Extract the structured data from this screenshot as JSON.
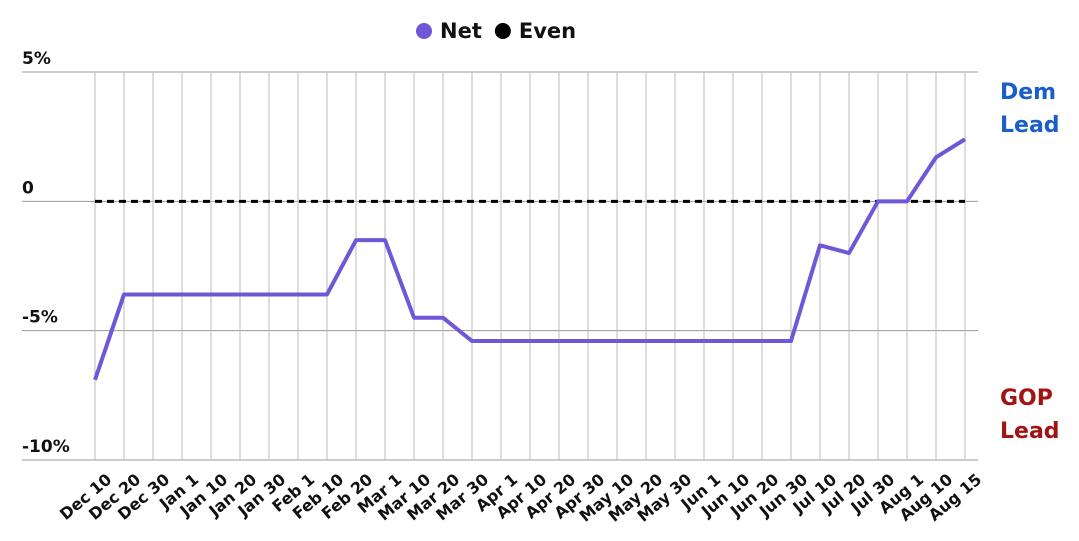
{
  "chart_data": {
    "type": "line",
    "categories": [
      "Dec 10",
      "Dec 20",
      "Dec 30",
      "Jan 1",
      "Jan 10",
      "Jan 20",
      "Jan 30",
      "Feb 1",
      "Feb 10",
      "Feb 20",
      "Mar 1",
      "Mar 10",
      "Mar 20",
      "Mar 30",
      "Apr 1",
      "Apr 10",
      "Apr 20",
      "Apr 30",
      "May 10",
      "May 20",
      "May 30",
      "Jun 1",
      "Jun 10",
      "Jun 20",
      "Jun 30",
      "Jul 10",
      "Jul 20",
      "Jul 30",
      "Aug 1",
      "Aug 10",
      "Aug 15"
    ],
    "series": [
      {
        "name": "Net",
        "color": "#7057d8",
        "dashed": false,
        "values": [
          -6.9,
          -3.6,
          -3.6,
          -3.6,
          -3.6,
          -3.6,
          -3.6,
          -3.6,
          -3.6,
          -1.5,
          -1.5,
          -4.5,
          -4.5,
          -5.4,
          -5.4,
          -5.4,
          -5.4,
          -5.4,
          -5.4,
          -5.4,
          -5.4,
          -5.4,
          -5.4,
          -5.4,
          -5.4,
          -1.7,
          -2.0,
          0,
          0,
          1.7,
          2.4
        ]
      },
      {
        "name": "Even",
        "color": "#000000",
        "dashed": true,
        "values": [
          0,
          0,
          0,
          0,
          0,
          0,
          0,
          0,
          0,
          0,
          0,
          0,
          0,
          0,
          0,
          0,
          0,
          0,
          0,
          0,
          0,
          0,
          0,
          0,
          0,
          0,
          0,
          0,
          0,
          0,
          0
        ]
      }
    ],
    "ylim": [
      -10,
      5
    ],
    "yticks": [
      {
        "value": -10,
        "label": "-10%"
      },
      {
        "value": -5,
        "label": "-5%"
      },
      0,
      {
        "value": 5,
        "label": "5%"
      }
    ],
    "grid": true,
    "annotations": [
      {
        "text": "Dem Lead",
        "color": "#1a5fc8"
      },
      {
        "text": "GOP Lead",
        "color": "#a11414"
      }
    ]
  }
}
